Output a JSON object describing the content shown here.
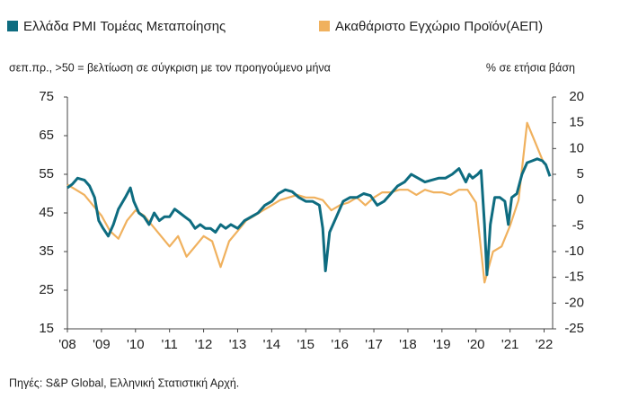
{
  "chart_data": {
    "type": "line",
    "legend": "top",
    "series": [
      {
        "name": "Ελλάδα PMI Τομέας Μεταποίησης",
        "color": "#0e6c80",
        "axis": "y",
        "x": [
          2008.0,
          2008.15,
          2008.3,
          2008.5,
          2008.65,
          2008.8,
          2008.92,
          2009.05,
          2009.2,
          2009.35,
          2009.5,
          2009.7,
          2009.85,
          2009.95,
          2010.1,
          2010.25,
          2010.4,
          2010.55,
          2010.7,
          2010.85,
          2011.0,
          2011.15,
          2011.3,
          2011.45,
          2011.6,
          2011.75,
          2011.9,
          2012.05,
          2012.2,
          2012.35,
          2012.5,
          2012.65,
          2012.8,
          2013.0,
          2013.2,
          2013.4,
          2013.6,
          2013.8,
          2014.0,
          2014.2,
          2014.4,
          2014.6,
          2014.8,
          2015.0,
          2015.2,
          2015.4,
          2015.5,
          2015.58,
          2015.7,
          2015.9,
          2016.1,
          2016.3,
          2016.5,
          2016.7,
          2016.9,
          2017.1,
          2017.3,
          2017.5,
          2017.7,
          2017.9,
          2018.1,
          2018.3,
          2018.5,
          2018.7,
          2018.9,
          2019.1,
          2019.3,
          2019.5,
          2019.7,
          2019.8,
          2019.9,
          2020.05,
          2020.15,
          2020.25,
          2020.32,
          2020.42,
          2020.55,
          2020.7,
          2020.85,
          2020.95,
          2021.05,
          2021.2,
          2021.35,
          2021.5,
          2021.65,
          2021.8,
          2021.95,
          2022.05,
          2022.17
        ],
        "values": [
          51.5,
          52.5,
          54,
          53.5,
          52,
          49,
          43,
          41,
          39,
          42,
          46,
          49,
          51.5,
          48,
          45,
          44,
          42,
          45,
          43,
          44,
          44,
          46,
          45,
          44,
          43,
          41,
          42,
          41,
          41,
          40,
          42,
          41,
          42,
          41,
          43,
          44,
          45,
          47,
          48,
          50,
          51,
          50.5,
          49,
          48,
          48,
          47,
          41,
          30,
          40,
          44,
          48,
          49,
          49,
          50,
          49.5,
          47,
          48,
          50,
          52,
          53,
          55,
          54,
          53,
          53.5,
          54,
          54,
          55,
          56.5,
          53,
          55,
          54,
          55,
          56,
          42,
          29,
          42,
          49,
          49,
          48,
          42,
          49,
          50,
          55,
          58,
          58.5,
          59,
          58.5,
          57.5,
          54.5
        ]
      },
      {
        "name": "Ακαθάριστο Εγχώριο Προϊόν(ΑΕΠ)",
        "color": "#f0b15e",
        "axis": "y2",
        "x": [
          2008.0,
          2008.25,
          2008.5,
          2008.75,
          2009.0,
          2009.25,
          2009.5,
          2009.75,
          2010.0,
          2010.25,
          2010.5,
          2010.75,
          2011.0,
          2011.25,
          2011.5,
          2011.75,
          2012.0,
          2012.25,
          2012.5,
          2012.75,
          2013.0,
          2013.25,
          2013.5,
          2013.75,
          2014.0,
          2014.25,
          2014.5,
          2014.75,
          2015.0,
          2015.25,
          2015.5,
          2015.75,
          2016.0,
          2016.25,
          2016.5,
          2016.75,
          2017.0,
          2017.25,
          2017.5,
          2017.75,
          2018.0,
          2018.25,
          2018.5,
          2018.75,
          2019.0,
          2019.25,
          2019.5,
          2019.75,
          2020.0,
          2020.25,
          2020.5,
          2020.75,
          2021.0,
          2021.25,
          2021.5,
          2021.75,
          2022.0
        ],
        "values": [
          3,
          2,
          1,
          -1,
          -3,
          -6,
          -7.5,
          -4,
          -2,
          -3,
          -5,
          -7,
          -9,
          -7,
          -11,
          -9,
          -7,
          -8,
          -13,
          -8,
          -6,
          -4,
          -3,
          -2,
          -1,
          0,
          0.5,
          1,
          0.5,
          0.5,
          0,
          -2,
          -1,
          -0.5,
          0.5,
          -1,
          0.5,
          1.5,
          1.5,
          2,
          2,
          1,
          2,
          1.5,
          1.5,
          1,
          2,
          2,
          -0.5,
          -16,
          -10,
          -9,
          -5,
          0,
          15,
          11,
          7
        ]
      }
    ],
    "y_label": "σεπ.πρ., >50 = βελτίωση σε σύγκριση με τον προηγούμενο μήνα",
    "y2_label": "% σε ετήσια βάση",
    "source": "Πηγές: S&P Global, Ελληνική Στατιστική Αρχή.",
    "xlim": [
      2008,
      2022.25
    ],
    "xticks": [
      {
        "value": 2008,
        "label": "'08"
      },
      {
        "value": 2009,
        "label": "'09"
      },
      {
        "value": 2010,
        "label": "'10"
      },
      {
        "value": 2011,
        "label": "'11"
      },
      {
        "value": 2012,
        "label": "'12"
      },
      {
        "value": 2013,
        "label": "'13"
      },
      {
        "value": 2014,
        "label": "'14"
      },
      {
        "value": 2015,
        "label": "'15"
      },
      {
        "value": 2016,
        "label": "'16"
      },
      {
        "value": 2017,
        "label": "'17"
      },
      {
        "value": 2018,
        "label": "'18"
      },
      {
        "value": 2019,
        "label": "'19"
      },
      {
        "value": 2020,
        "label": "'20"
      },
      {
        "value": 2021,
        "label": "'21"
      },
      {
        "value": 2022,
        "label": "'22"
      }
    ],
    "ylim": [
      15,
      75
    ],
    "yticks": [
      15,
      25,
      35,
      45,
      55,
      65,
      75
    ],
    "y2lim": [
      -25,
      20
    ],
    "y2ticks": [
      -25,
      -20,
      -15,
      -10,
      -5,
      0,
      5,
      10,
      15,
      20
    ]
  }
}
